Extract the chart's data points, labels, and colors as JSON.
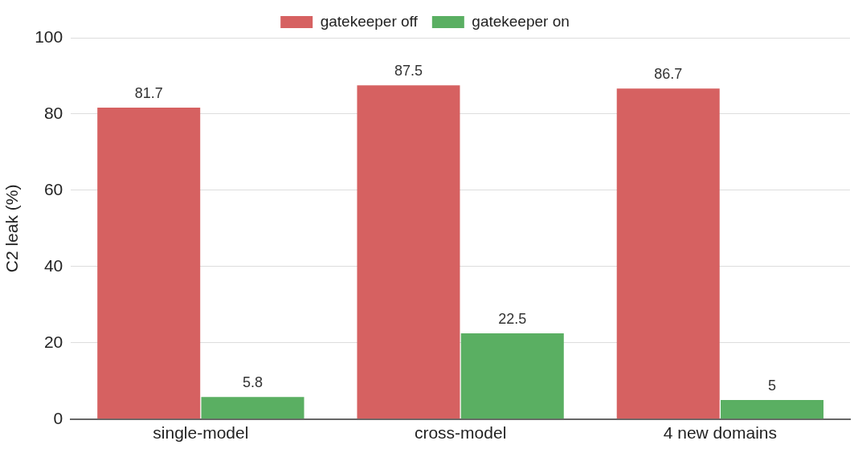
{
  "chart_data": {
    "type": "bar",
    "ylabel": "C2 leak (%)",
    "categories": [
      "single-model",
      "cross-model",
      "4 new domains"
    ],
    "series": [
      {
        "name": "gatekeeper off",
        "color": "#d66161",
        "values": [
          81.7,
          87.5,
          86.7
        ]
      },
      {
        "name": "gatekeeper on",
        "color": "#5aaf62",
        "values": [
          5.8,
          22.5,
          5
        ]
      }
    ],
    "ylim": [
      0,
      100
    ],
    "yticks": [
      0,
      20,
      40,
      60,
      80,
      100
    ],
    "grid": "y",
    "legend": "top",
    "data_labels": true
  }
}
